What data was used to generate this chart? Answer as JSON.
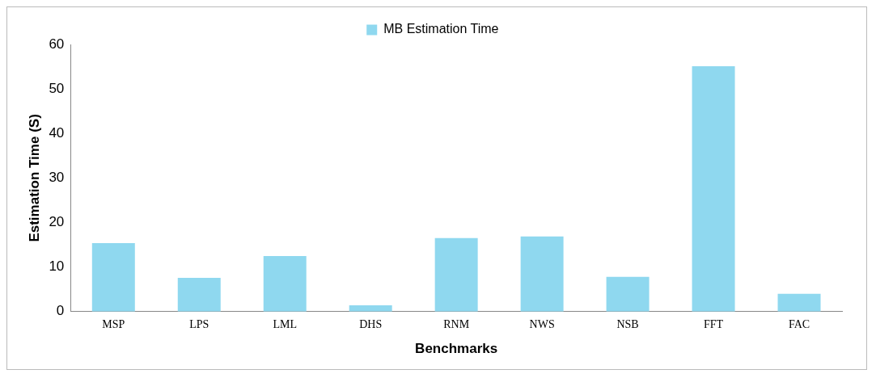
{
  "chart_data": {
    "type": "bar",
    "xlabel": "Benchmarks",
    "ylabel": "Estimation Time (S)",
    "categories": [
      "MSP",
      "LPS",
      "LML",
      "DHS",
      "RNM",
      "NWS",
      "NSB",
      "FFT",
      "FAC"
    ],
    "series": [
      {
        "name": "MB Estimation Time",
        "color": "#8fd8ef",
        "values": [
          15.4,
          7.6,
          12.5,
          1.4,
          16.5,
          16.9,
          7.8,
          55.1,
          4.0
        ]
      }
    ],
    "ylim": [
      0,
      60
    ],
    "yticks": [
      0,
      10,
      20,
      30,
      40,
      50,
      60
    ],
    "grid": false,
    "legend": "top"
  }
}
